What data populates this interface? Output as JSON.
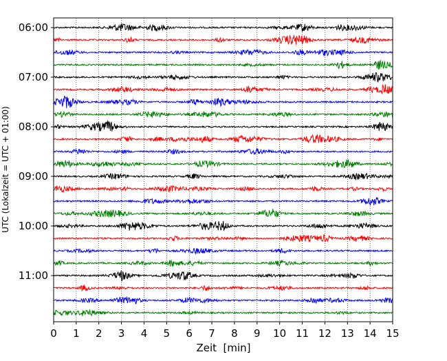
{
  "chart_data": {
    "type": "line",
    "title": "",
    "xlabel": "Zeit  [min]",
    "ylabel": "UTC (Lokalzeit = UTC + 01:00)",
    "xlim": [
      0,
      15
    ],
    "x_ticks": [
      "0",
      "1",
      "2",
      "3",
      "4",
      "5",
      "6",
      "7",
      "8",
      "9",
      "10",
      "11",
      "12",
      "13",
      "14",
      "15"
    ],
    "y_tick_labels": [
      "06:00",
      "07:00",
      "08:00",
      "09:00",
      "10:00",
      "11:00"
    ],
    "grid": "vertical dotted lines at each minute",
    "row_interval_minutes": 15,
    "rows": [
      {
        "start": "06:00",
        "color": "#000000"
      },
      {
        "start": "06:15",
        "color": "#ff0000"
      },
      {
        "start": "06:30",
        "color": "#0000ff"
      },
      {
        "start": "06:45",
        "color": "#008000"
      },
      {
        "start": "07:00",
        "color": "#000000"
      },
      {
        "start": "07:15",
        "color": "#ff0000"
      },
      {
        "start": "07:30",
        "color": "#0000ff"
      },
      {
        "start": "07:45",
        "color": "#008000"
      },
      {
        "start": "08:00",
        "color": "#000000"
      },
      {
        "start": "08:15",
        "color": "#ff0000"
      },
      {
        "start": "08:30",
        "color": "#0000ff"
      },
      {
        "start": "08:45",
        "color": "#008000"
      },
      {
        "start": "09:00",
        "color": "#000000"
      },
      {
        "start": "09:15",
        "color": "#ff0000"
      },
      {
        "start": "09:30",
        "color": "#0000ff"
      },
      {
        "start": "09:45",
        "color": "#008000"
      },
      {
        "start": "10:00",
        "color": "#000000"
      },
      {
        "start": "10:15",
        "color": "#ff0000"
      },
      {
        "start": "10:30",
        "color": "#0000ff"
      },
      {
        "start": "10:45",
        "color": "#008000"
      },
      {
        "start": "11:00",
        "color": "#000000"
      },
      {
        "start": "11:15",
        "color": "#ff0000"
      },
      {
        "start": "11:30",
        "color": "#0000ff"
      },
      {
        "start": "11:45",
        "color": "#008000"
      }
    ]
  }
}
